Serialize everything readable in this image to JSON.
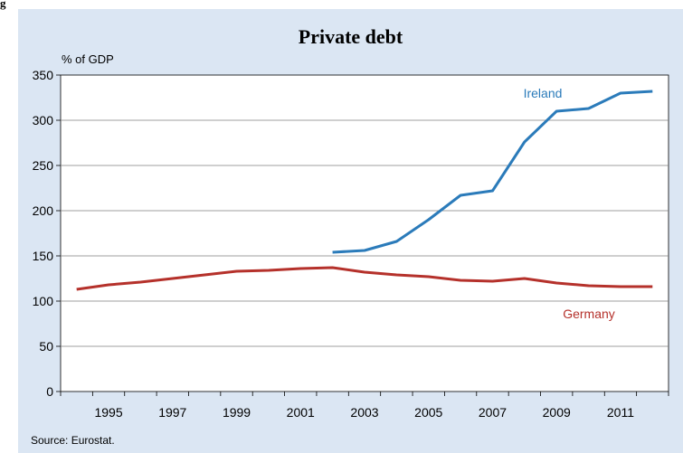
{
  "figure_label": "g",
  "title": "Private debt",
  "source": "Source: Eurostat.",
  "chart_data": {
    "type": "line",
    "title": "Private debt",
    "ylabel": "% of GDP",
    "xlabel": "",
    "ylim": [
      0,
      350
    ],
    "yticks": [
      0,
      50,
      100,
      150,
      200,
      250,
      300,
      350
    ],
    "xlim": [
      1994,
      2013
    ],
    "xticks": [
      1995,
      1997,
      1999,
      2001,
      2003,
      2005,
      2007,
      2009,
      2011
    ],
    "grid": "horizontal",
    "series": [
      {
        "name": "Ireland",
        "color": "#2b7bba",
        "x": [
          2002,
          2003,
          2004,
          2005,
          2006,
          2007,
          2008,
          2009,
          2010,
          2011,
          2012
        ],
        "values": [
          154,
          156,
          166,
          190,
          217,
          222,
          276,
          310,
          313,
          330,
          332
        ]
      },
      {
        "name": "Germany",
        "color": "#b5312b",
        "x": [
          1994,
          1995,
          1996,
          1997,
          1998,
          1999,
          2000,
          2001,
          2002,
          2003,
          2004,
          2005,
          2006,
          2007,
          2008,
          2009,
          2010,
          2011,
          2012
        ],
        "values": [
          113,
          118,
          121,
          125,
          129,
          133,
          134,
          136,
          137,
          132,
          129,
          127,
          123,
          122,
          125,
          120,
          117,
          116,
          116
        ]
      }
    ]
  }
}
